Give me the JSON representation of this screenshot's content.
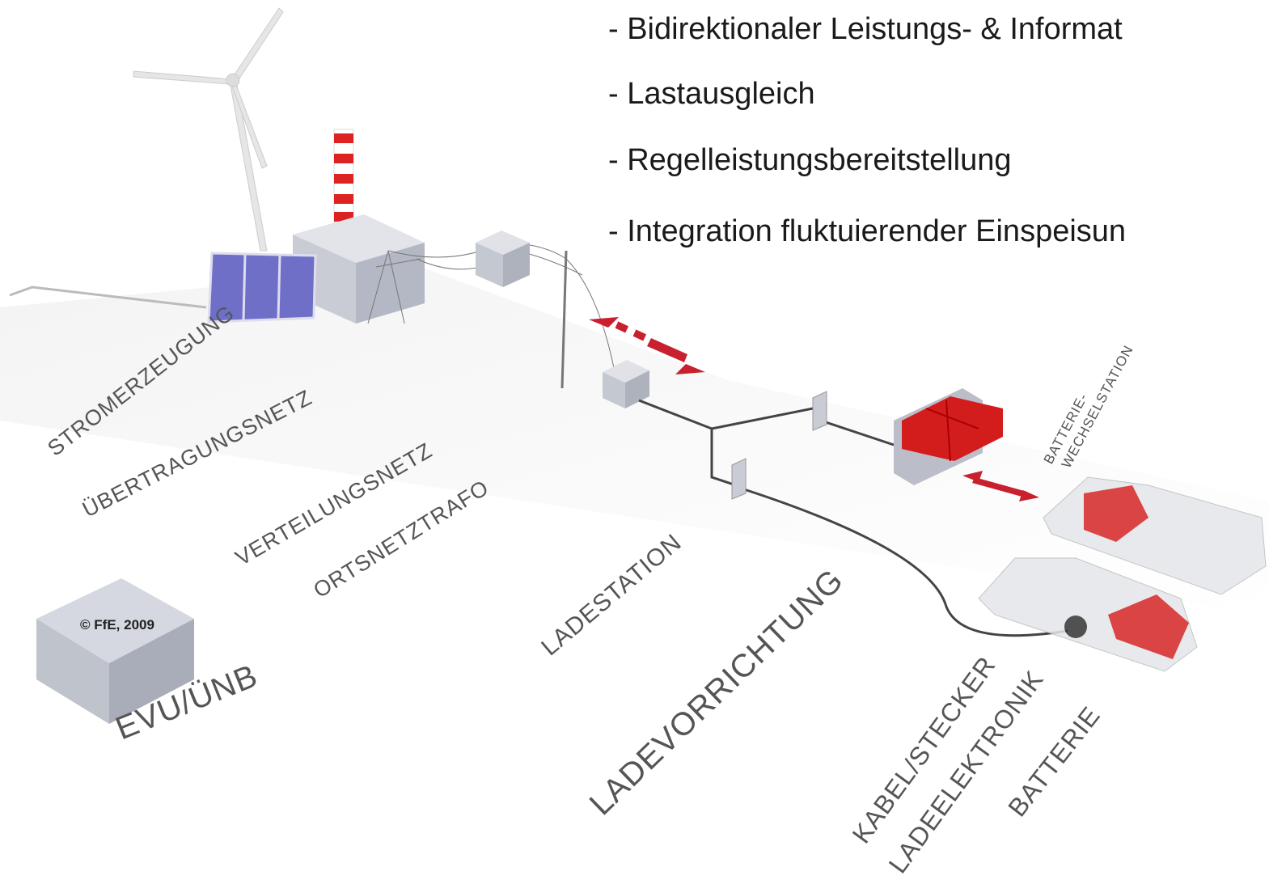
{
  "bullets": [
    "- Bidirektionaler Leistungs- & Informat",
    "- Lastausgleich",
    "- Regelleistungsbereitstellung",
    "- Integration fluktuierender Einspeisun"
  ],
  "labels": {
    "stromerzeugung": "STROMERZEUGUNG",
    "uebertragungsnetz": "ÜBERTRAGUNGSNETZ",
    "verteilungsnetz": "VERTEILUNGSNETZ",
    "ortsnetztrafo": "ORTSNETZTRAFO",
    "ladestation": "LADESTATION",
    "ladevorrichtung": "LADEVORRICHTUNG",
    "kabel_stecker": "KABEL/STECKER",
    "ladeelektronik": "LADEELEKTRONIK",
    "batterie": "BATTERIE",
    "wechselstation": [
      "BATTERIE-",
      "WECHSELSTATION"
    ],
    "evu": "EVU/ÜNB"
  },
  "copyright": "© FfE, 2009"
}
